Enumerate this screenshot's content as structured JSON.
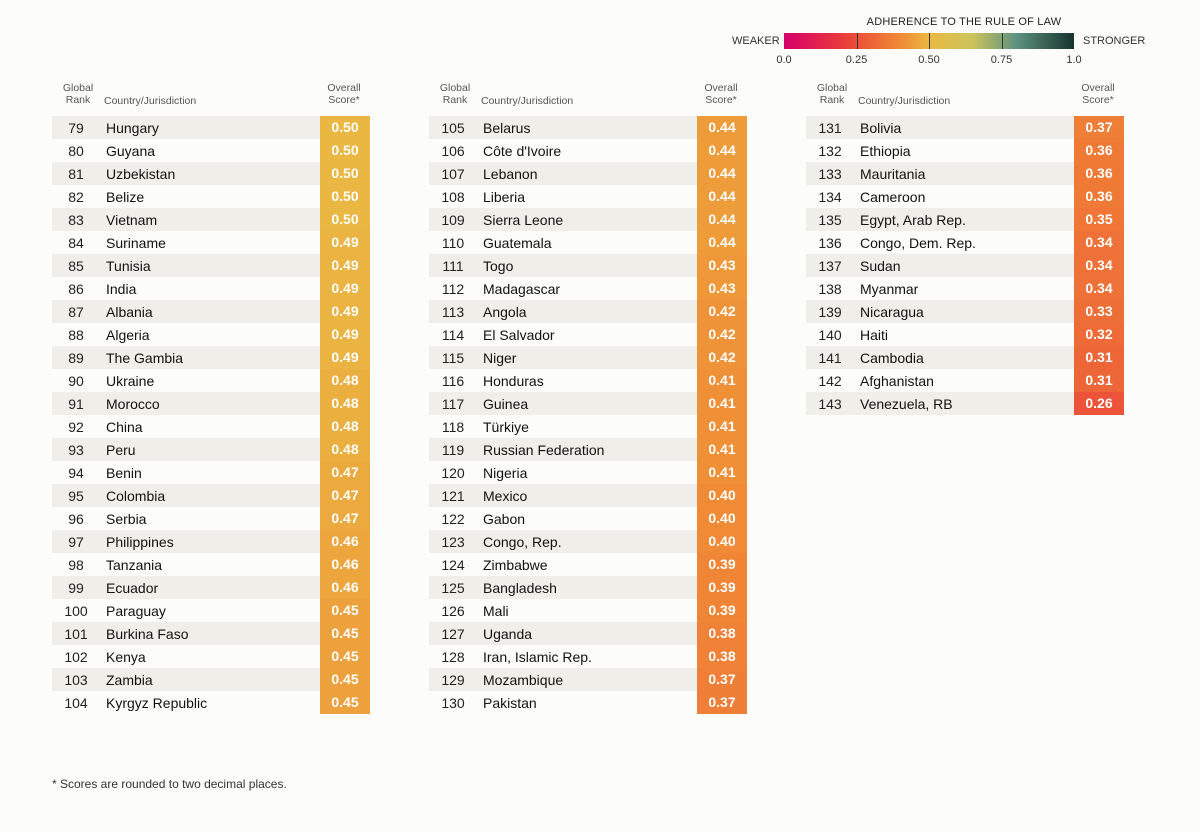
{
  "legend": {
    "title": "ADHERENCE TO THE RULE OF LAW",
    "weak_label": "WEAKER",
    "strong_label": "STRONGER",
    "ticks": [
      "0.0",
      "0.25",
      "0.50",
      "0.75",
      "1.0"
    ]
  },
  "headers": {
    "rank": "Global Rank",
    "country": "Country/Jurisdiction",
    "score": "Overall Score*"
  },
  "footnote": "* Scores are rounded to two decimal places.",
  "chart_data": {
    "type": "table",
    "title": "",
    "columns": [
      "Global Rank",
      "Country/Jurisdiction",
      "Overall Score*"
    ],
    "color_scale": {
      "domain": [
        0,
        1
      ],
      "stops": [
        {
          "value": 0.0,
          "color": "#d6006b"
        },
        {
          "value": 0.2,
          "color": "#ea3b3b"
        },
        {
          "value": 0.4,
          "color": "#f08a35"
        },
        {
          "value": 0.5,
          "color": "#eab842"
        },
        {
          "value": 0.65,
          "color": "#cbc45b"
        },
        {
          "value": 0.8,
          "color": "#5e9280"
        },
        {
          "value": 1.0,
          "color": "#16342c"
        }
      ]
    },
    "rows": [
      {
        "rank": 79,
        "country": "Hungary",
        "score": 0.5
      },
      {
        "rank": 80,
        "country": "Guyana",
        "score": 0.5
      },
      {
        "rank": 81,
        "country": "Uzbekistan",
        "score": 0.5
      },
      {
        "rank": 82,
        "country": "Belize",
        "score": 0.5
      },
      {
        "rank": 83,
        "country": "Vietnam",
        "score": 0.5
      },
      {
        "rank": 84,
        "country": "Suriname",
        "score": 0.49
      },
      {
        "rank": 85,
        "country": "Tunisia",
        "score": 0.49
      },
      {
        "rank": 86,
        "country": "India",
        "score": 0.49
      },
      {
        "rank": 87,
        "country": "Albania",
        "score": 0.49
      },
      {
        "rank": 88,
        "country": "Algeria",
        "score": 0.49
      },
      {
        "rank": 89,
        "country": "The Gambia",
        "score": 0.49
      },
      {
        "rank": 90,
        "country": "Ukraine",
        "score": 0.48
      },
      {
        "rank": 91,
        "country": "Morocco",
        "score": 0.48
      },
      {
        "rank": 92,
        "country": "China",
        "score": 0.48
      },
      {
        "rank": 93,
        "country": "Peru",
        "score": 0.48
      },
      {
        "rank": 94,
        "country": "Benin",
        "score": 0.47
      },
      {
        "rank": 95,
        "country": "Colombia",
        "score": 0.47
      },
      {
        "rank": 96,
        "country": "Serbia",
        "score": 0.47
      },
      {
        "rank": 97,
        "country": "Philippines",
        "score": 0.46
      },
      {
        "rank": 98,
        "country": "Tanzania",
        "score": 0.46
      },
      {
        "rank": 99,
        "country": "Ecuador",
        "score": 0.46
      },
      {
        "rank": 100,
        "country": "Paraguay",
        "score": 0.45
      },
      {
        "rank": 101,
        "country": "Burkina Faso",
        "score": 0.45
      },
      {
        "rank": 102,
        "country": "Kenya",
        "score": 0.45
      },
      {
        "rank": 103,
        "country": "Zambia",
        "score": 0.45
      },
      {
        "rank": 104,
        "country": "Kyrgyz Republic",
        "score": 0.45
      },
      {
        "rank": 105,
        "country": "Belarus",
        "score": 0.44
      },
      {
        "rank": 106,
        "country": "Côte d'Ivoire",
        "score": 0.44
      },
      {
        "rank": 107,
        "country": "Lebanon",
        "score": 0.44
      },
      {
        "rank": 108,
        "country": "Liberia",
        "score": 0.44
      },
      {
        "rank": 109,
        "country": "Sierra Leone",
        "score": 0.44
      },
      {
        "rank": 110,
        "country": "Guatemala",
        "score": 0.44
      },
      {
        "rank": 111,
        "country": "Togo",
        "score": 0.43
      },
      {
        "rank": 112,
        "country": "Madagascar",
        "score": 0.43
      },
      {
        "rank": 113,
        "country": "Angola",
        "score": 0.42
      },
      {
        "rank": 114,
        "country": "El Salvador",
        "score": 0.42
      },
      {
        "rank": 115,
        "country": "Niger",
        "score": 0.42
      },
      {
        "rank": 116,
        "country": "Honduras",
        "score": 0.41
      },
      {
        "rank": 117,
        "country": "Guinea",
        "score": 0.41
      },
      {
        "rank": 118,
        "country": "Türkiye",
        "score": 0.41
      },
      {
        "rank": 119,
        "country": "Russian Federation",
        "score": 0.41
      },
      {
        "rank": 120,
        "country": "Nigeria",
        "score": 0.41
      },
      {
        "rank": 121,
        "country": "Mexico",
        "score": 0.4
      },
      {
        "rank": 122,
        "country": "Gabon",
        "score": 0.4
      },
      {
        "rank": 123,
        "country": "Congo, Rep.",
        "score": 0.4
      },
      {
        "rank": 124,
        "country": "Zimbabwe",
        "score": 0.39
      },
      {
        "rank": 125,
        "country": "Bangladesh",
        "score": 0.39
      },
      {
        "rank": 126,
        "country": "Mali",
        "score": 0.39
      },
      {
        "rank": 127,
        "country": "Uganda",
        "score": 0.38
      },
      {
        "rank": 128,
        "country": "Iran, Islamic Rep.",
        "score": 0.38
      },
      {
        "rank": 129,
        "country": "Mozambique",
        "score": 0.37
      },
      {
        "rank": 130,
        "country": "Pakistan",
        "score": 0.37
      },
      {
        "rank": 131,
        "country": "Bolivia",
        "score": 0.37
      },
      {
        "rank": 132,
        "country": "Ethiopia",
        "score": 0.36
      },
      {
        "rank": 133,
        "country": "Mauritania",
        "score": 0.36
      },
      {
        "rank": 134,
        "country": "Cameroon",
        "score": 0.36
      },
      {
        "rank": 135,
        "country": "Egypt, Arab Rep.",
        "score": 0.35
      },
      {
        "rank": 136,
        "country": "Congo, Dem. Rep.",
        "score": 0.34
      },
      {
        "rank": 137,
        "country": "Sudan",
        "score": 0.34
      },
      {
        "rank": 138,
        "country": "Myanmar",
        "score": 0.34
      },
      {
        "rank": 139,
        "country": "Nicaragua",
        "score": 0.33
      },
      {
        "rank": 140,
        "country": "Haiti",
        "score": 0.32
      },
      {
        "rank": 141,
        "country": "Cambodia",
        "score": 0.31
      },
      {
        "rank": 142,
        "country": "Afghanistan",
        "score": 0.31
      },
      {
        "rank": 143,
        "country": "Venezuela, RB",
        "score": 0.26
      }
    ]
  }
}
